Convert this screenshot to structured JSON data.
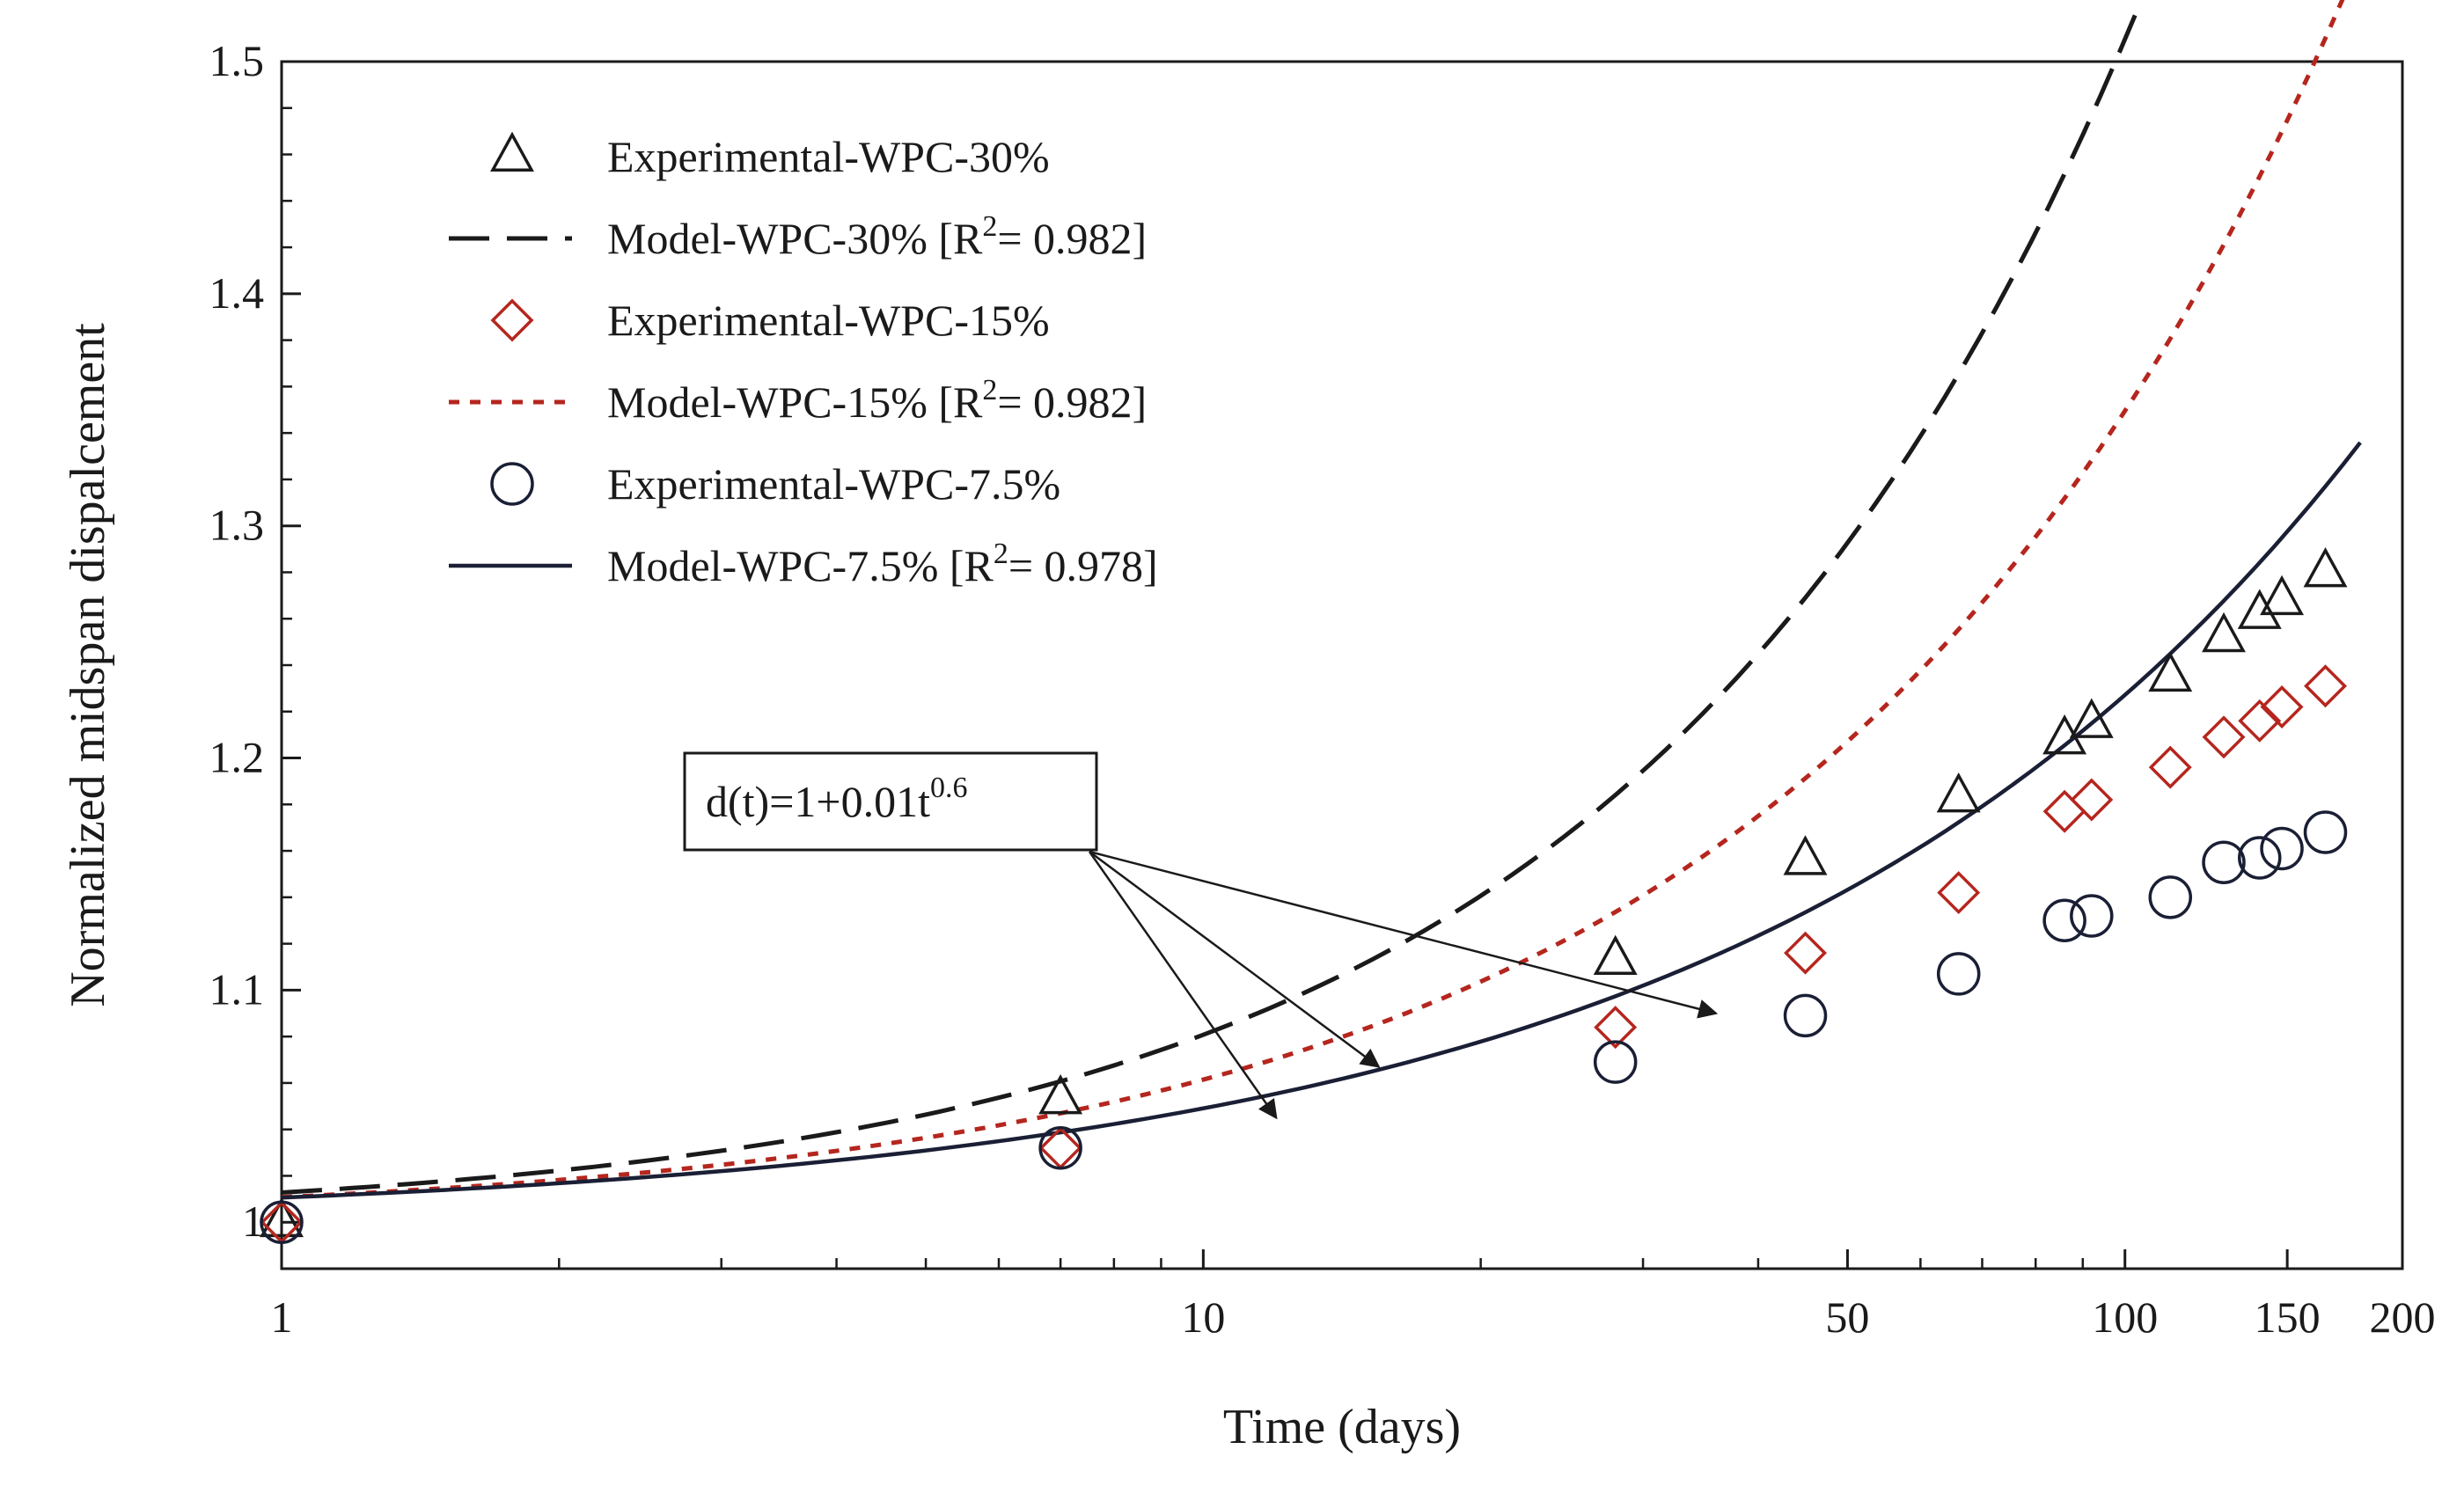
{
  "chart_data": {
    "type": "scatter",
    "title": "",
    "xlabel": "Time (days)",
    "ylabel": "Normalized midspan dispalcement",
    "xscale": "log",
    "xlim": [
      1,
      200
    ],
    "ylim": [
      0.98,
      1.5
    ],
    "x_ticks": [
      {
        "value": 1,
        "label": "1"
      },
      {
        "value": 10,
        "label": "10"
      },
      {
        "value": 50,
        "label": "50"
      },
      {
        "value": 100,
        "label": "100"
      },
      {
        "value": 150,
        "label": "150"
      },
      {
        "value": 200,
        "label": "200"
      }
    ],
    "y_ticks": [
      {
        "value": 1.0,
        "label": "1"
      },
      {
        "value": 1.1,
        "label": "1.1"
      },
      {
        "value": 1.2,
        "label": "1.2"
      },
      {
        "value": 1.3,
        "label": "1.3"
      },
      {
        "value": 1.4,
        "label": "1.4"
      },
      {
        "value": 1.5,
        "label": "1.5"
      }
    ],
    "series": [
      {
        "name": "Experimental-WPC-30%",
        "kind": "scatter",
        "marker": "triangle",
        "color": "#1a1a1a",
        "x": [
          1,
          7,
          28,
          45,
          66,
          86,
          92,
          112,
          128,
          140,
          148,
          165
        ],
        "y": [
          1.0,
          1.053,
          1.113,
          1.156,
          1.183,
          1.208,
          1.215,
          1.235,
          1.252,
          1.262,
          1.268,
          1.28
        ]
      },
      {
        "name": "Model-WPC-30% [R",
        "r2": "0.982",
        "kind": "line",
        "dash": "dashed",
        "color": "#1a1a1a",
        "a": 0.0128,
        "b": 0.8
      },
      {
        "name": "Experimental-WPC-15%",
        "kind": "scatter",
        "marker": "diamond",
        "color": "#b5261e",
        "x": [
          1,
          7,
          28,
          45,
          66,
          86,
          92,
          112,
          128,
          140,
          148,
          165
        ],
        "y": [
          1.0,
          1.032,
          1.084,
          1.116,
          1.142,
          1.177,
          1.182,
          1.196,
          1.209,
          1.216,
          1.222,
          1.231
        ]
      },
      {
        "name": "Model-WPC-15% [R",
        "r2": "0.982",
        "kind": "line",
        "dash": "dotted",
        "color": "#b5261e",
        "a": 0.0108,
        "b": 0.755
      },
      {
        "name": "Experimental-WPC-7.5%",
        "kind": "scatter",
        "marker": "circle",
        "color": "#1a1f35",
        "x": [
          1,
          7,
          28,
          45,
          66,
          86,
          92,
          112,
          128,
          140,
          148,
          165
        ],
        "y": [
          1.0,
          1.032,
          1.069,
          1.089,
          1.107,
          1.13,
          1.132,
          1.14,
          1.155,
          1.157,
          1.161,
          1.168
        ]
      },
      {
        "name": "Model-WPC-7.5% [R",
        "r2": "0.978",
        "kind": "line",
        "dash": "solid",
        "color": "#1a1f35",
        "a": 0.0106,
        "b": 0.6655
      }
    ],
    "legend": {
      "placement": "top-left",
      "r2_prefix": "2",
      "r2_sep": "= ",
      "r2_suffix": "]"
    },
    "annotation": {
      "text_main": "d(t)=1+0.01t",
      "text_exp": "0.6",
      "arrow_targets": [
        {
          "x": 36,
          "y": 1.09
        },
        {
          "x": 15.5,
          "y": 1.067
        },
        {
          "x": 12,
          "y": 1.045
        }
      ]
    }
  }
}
